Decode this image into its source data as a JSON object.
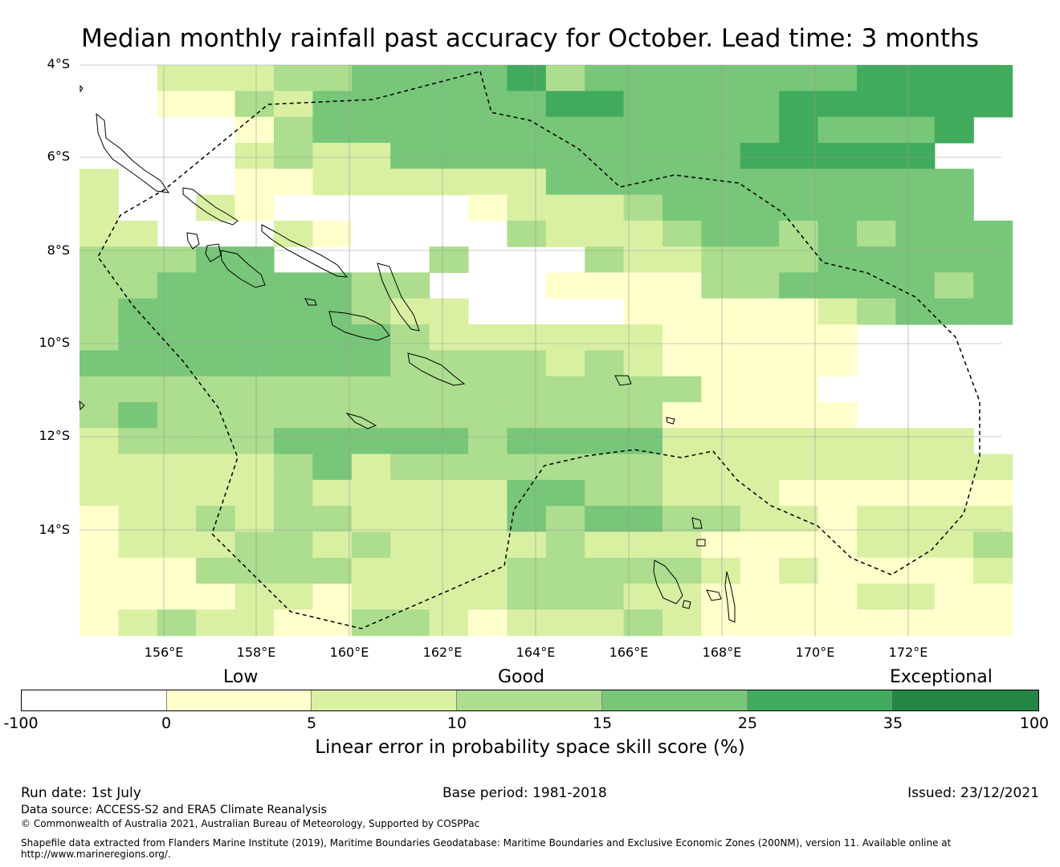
{
  "title": "Median monthly rainfall past accuracy for October. Lead time: 3 months",
  "latitude_labels": [
    "4°S",
    "6°S",
    "8°S",
    "10°S",
    "12°S",
    "14°S"
  ],
  "longitude_labels": [
    "156°E",
    "158°E",
    "160°E",
    "162°E",
    "164°E",
    "166°E",
    "168°E",
    "170°E",
    "172°E"
  ],
  "category_labels": {
    "low": "Low",
    "good": "Good",
    "exceptional": "Exceptional"
  },
  "colorbar": {
    "ticks": [
      "-100",
      "0",
      "5",
      "10",
      "15",
      "25",
      "35",
      "100"
    ],
    "colors": [
      "#ffffff",
      "#ffffcc",
      "#d9f0a3",
      "#addd8e",
      "#78c679",
      "#41ab5d",
      "#238443"
    ],
    "label": "Linear error in probability space skill score (%)"
  },
  "map_colors": {
    "none": "#ffffff",
    "low": "#ffffcc",
    "fair": "#d9f0a3",
    "moderate": "#addd8e",
    "good": "#78c679",
    "high": "#41ab5d",
    "very_high": "#238443"
  },
  "footer": {
    "run_date": "Run date: 1st July",
    "base_period": "Base period: 1981-2018",
    "issued": "Issued: 23/12/2021",
    "data_source": "Data source: ACCESS-S2 and ERA5 Climate Reanalysis",
    "copyright": "© Commonwealth of Australia 2021, Australian Bureau of Meteorology, Supported by COSPPac",
    "shapefile_line1": "Shapefile data extracted from Flanders Marine Institute (2019), Maritime Boundaries Geodatabase: Maritime Boundaries and Exclusive Economic Zones (200NM), version 11. Available online at",
    "shapefile_line2": "http://www.marineregions.org/."
  }
}
